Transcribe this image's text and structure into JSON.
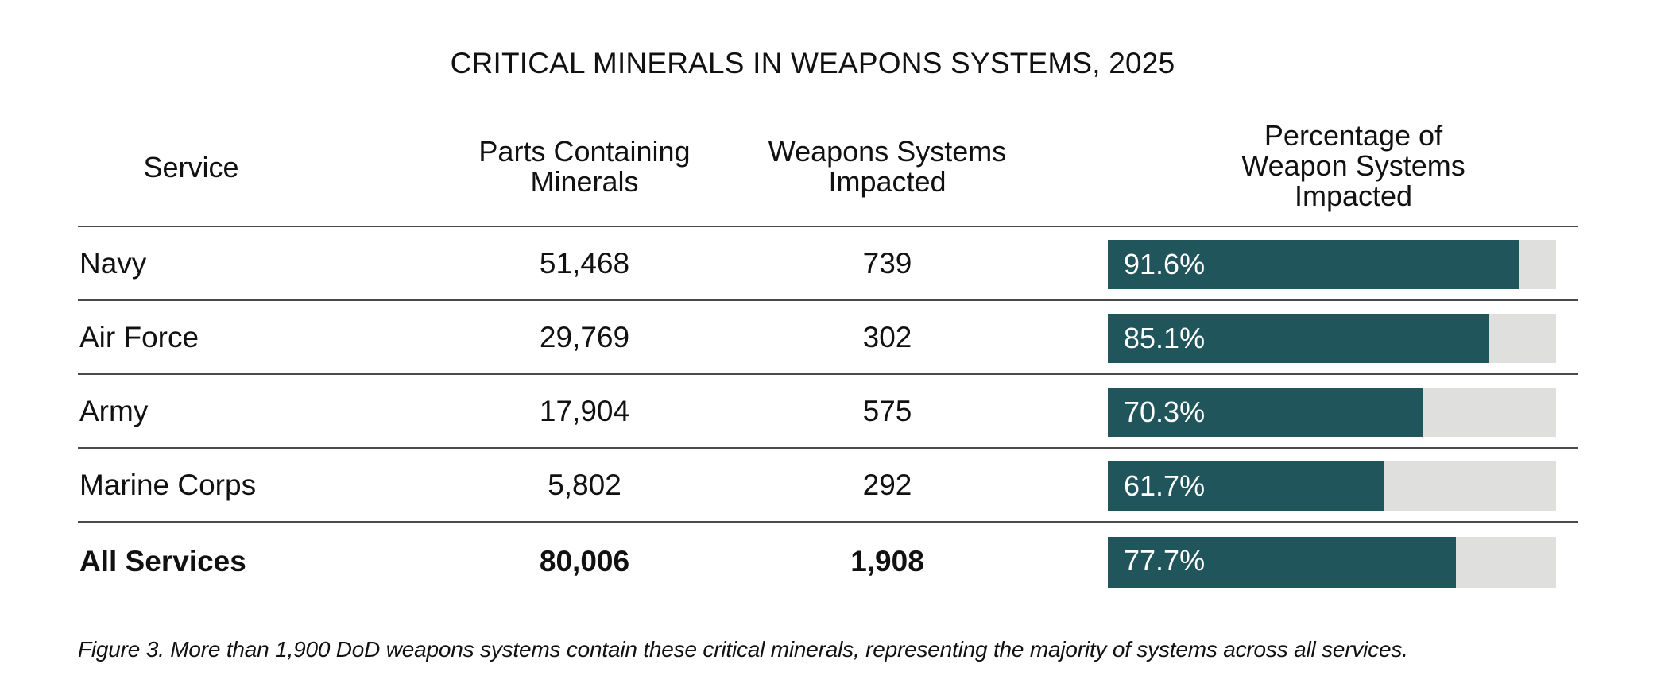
{
  "chart_data": {
    "type": "table",
    "title": "CRITICAL MINERALS IN WEAPONS SYSTEMS, 2025",
    "columns": [
      "Service",
      "Parts Containing Minerals",
      "Weapons Systems Impacted",
      "Percentage of Weapon Systems Impacted"
    ],
    "rows": [
      {
        "service": "Navy",
        "parts": "51,468",
        "weapons": "739",
        "pct_label": "91.6%",
        "pct": 91.6
      },
      {
        "service": "Air Force",
        "parts": "29,769",
        "weapons": "302",
        "pct_label": "85.1%",
        "pct": 85.1
      },
      {
        "service": "Army",
        "parts": "17,904",
        "weapons": "575",
        "pct_label": "70.3%",
        "pct": 70.3
      },
      {
        "service": "Marine Corps",
        "parts": "5,802",
        "weapons": "292",
        "pct_label": "61.7%",
        "pct": 61.7
      }
    ],
    "total": {
      "service": "All Services",
      "parts": "80,006",
      "weapons": "1,908",
      "pct_label": "77.7%",
      "pct": 77.7
    },
    "bar_range": [
      0,
      100
    ],
    "caption": "Figure 3. More than 1,900 DoD weapons systems contain these critical minerals, representing the majority of systems across all services."
  },
  "headers": {
    "service": "Service",
    "parts_line1": "Parts Containing",
    "parts_line2": "Minerals",
    "weapons_line1": "Weapons Systems",
    "weapons_line2": "Impacted",
    "pct_line1": "Percentage of",
    "pct_line2": "Weapon Systems",
    "pct_line3": "Impacted"
  },
  "colors": {
    "bar_fill": "#20565b",
    "bar_track": "#dfe0dd"
  }
}
